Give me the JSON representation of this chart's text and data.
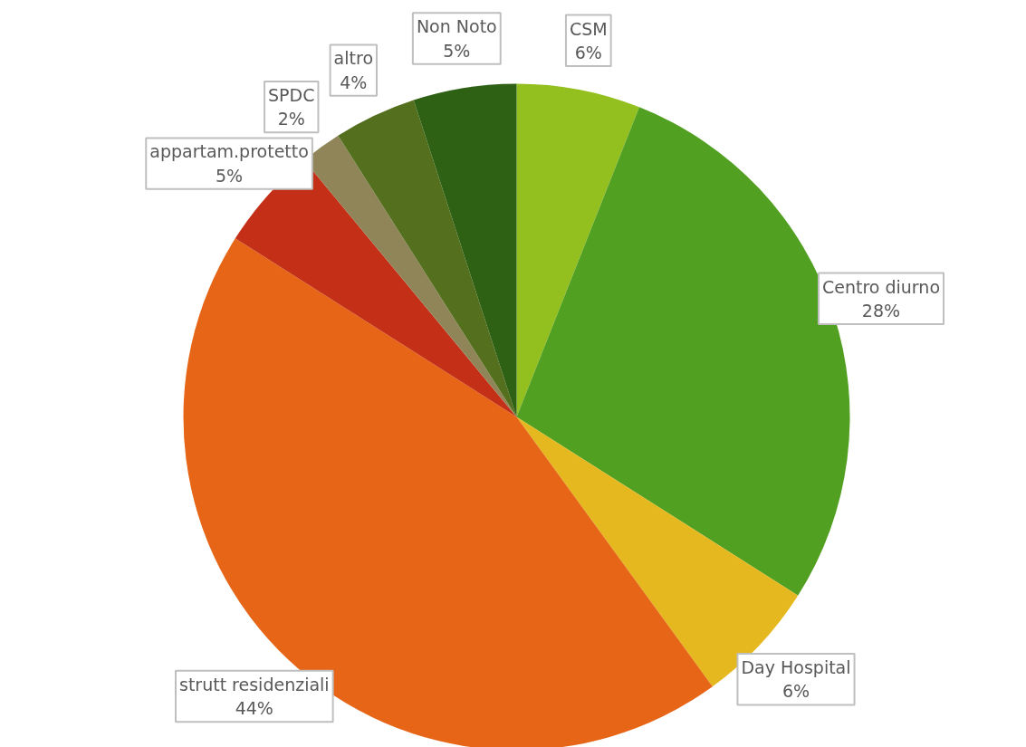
{
  "chart_data": {
    "type": "pie",
    "categories": [
      "CSM",
      "Centro diurno",
      "Day Hospital",
      "strutt residenziali",
      "appartam.protetto",
      "SPDC",
      "altro",
      "Non Noto"
    ],
    "values": [
      6,
      28,
      6,
      44,
      5,
      2,
      4,
      5
    ],
    "value_labels": [
      "6%",
      "28%",
      "6%",
      "44%",
      "5%",
      "2%",
      "4%",
      "5%"
    ],
    "colors": [
      "#93c01f",
      "#52a022",
      "#e5b81f",
      "#e66516",
      "#c33017",
      "#8f8558",
      "#54701e",
      "#2f6114"
    ]
  }
}
